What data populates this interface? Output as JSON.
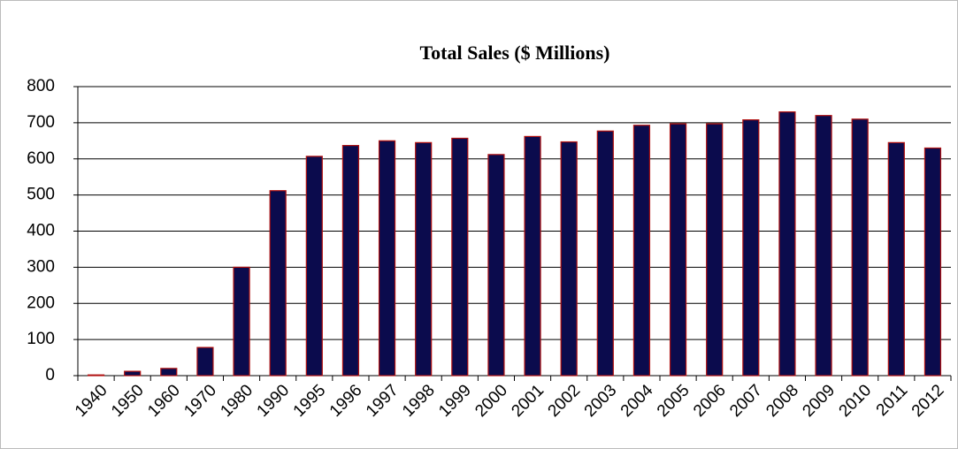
{
  "chart_data": {
    "type": "bar",
    "title": "Total Sales ($ Millions)",
    "categories": [
      "1940",
      "1950",
      "1960",
      "1970",
      "1980",
      "1990",
      "1995",
      "1996",
      "1997",
      "1998",
      "1999",
      "2000",
      "2001",
      "2002",
      "2003",
      "2004",
      "2005",
      "2006",
      "2007",
      "2008",
      "2009",
      "2010",
      "2011",
      "2012"
    ],
    "values": [
      2,
      12,
      20,
      78,
      300,
      512,
      607,
      637,
      650,
      645,
      657,
      612,
      662,
      647,
      677,
      693,
      697,
      697,
      708,
      730,
      720,
      710,
      645,
      630
    ],
    "color": "#0b0b4d",
    "ylim": [
      0,
      800
    ],
    "yticks": [
      0,
      100,
      200,
      300,
      400,
      500,
      600,
      700,
      800
    ],
    "grid": true
  }
}
